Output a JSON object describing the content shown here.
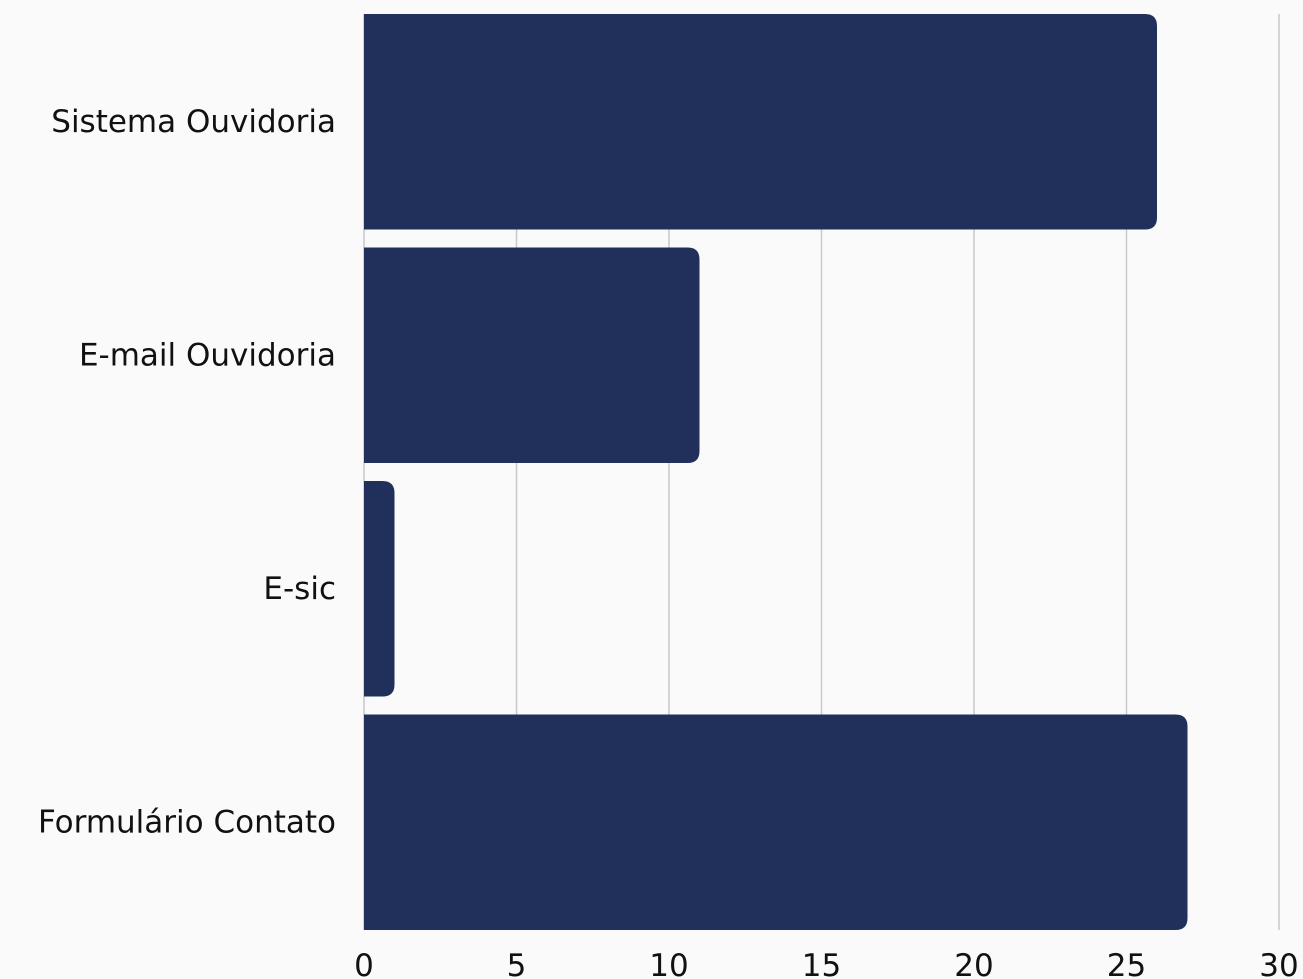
{
  "chart_data": {
    "type": "bar",
    "orientation": "horizontal",
    "categories": [
      "Sistema Ouvidoria",
      "E-mail Ouvidoria",
      "E-sic",
      "Formulário Contato"
    ],
    "values": [
      26,
      11,
      1,
      27
    ],
    "xlim": [
      0,
      30
    ],
    "xticks": [
      0,
      5,
      10,
      15,
      20,
      25,
      30
    ],
    "title": "",
    "xlabel": "",
    "ylabel": "",
    "grid": "vertical",
    "legend": "none",
    "colors": {
      "bar": "#20305a",
      "grid": "#c8c8c8",
      "background": "#fafafa",
      "text": "#111111"
    }
  }
}
